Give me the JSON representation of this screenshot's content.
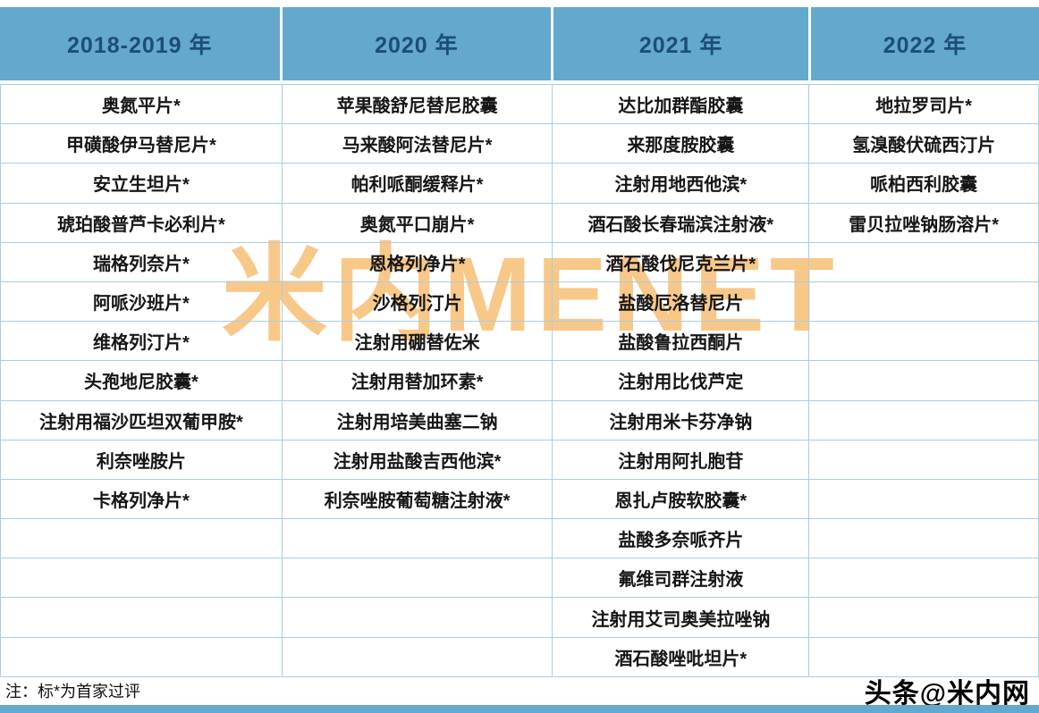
{
  "chart_data": {
    "type": "table",
    "title": "",
    "columns": [
      {
        "header": "2018-2019 年",
        "items": [
          "奥氮平片*",
          "甲磺酸伊马替尼片*",
          "安立生坦片*",
          "琥珀酸普芦卡必利片*",
          "瑞格列奈片*",
          "阿哌沙班片*",
          "维格列汀片*",
          "头孢地尼胶囊*",
          "注射用福沙匹坦双葡甲胺*",
          "利奈唑胺片",
          "卡格列净片*"
        ]
      },
      {
        "header": "2020 年",
        "items": [
          "苹果酸舒尼替尼胶囊",
          "马来酸阿法替尼片*",
          "帕利哌酮缓释片*",
          "奥氮平口崩片*",
          "恩格列净片*",
          "沙格列汀片",
          "注射用硼替佐米",
          "注射用替加环素*",
          "注射用培美曲塞二钠",
          "注射用盐酸吉西他滨*",
          "利奈唑胺葡萄糖注射液*"
        ]
      },
      {
        "header": "2021 年",
        "items": [
          "达比加群酯胶囊",
          "来那度胺胶囊",
          "注射用地西他滨*",
          "酒石酸长春瑞滨注射液*",
          "酒石酸伐尼克兰片*",
          "盐酸厄洛替尼片",
          "盐酸鲁拉西酮片",
          "注射用比伐芦定",
          "注射用米卡芬净钠",
          "注射用阿扎胞苷",
          "恩扎卢胺软胶囊*",
          "盐酸多奈哌齐片",
          "氟维司群注射液",
          "注射用艾司奥美拉唑钠",
          "酒石酸唑吡坦片*"
        ]
      },
      {
        "header": "2022 年",
        "items": [
          "地拉罗司片*",
          "氢溴酸伏硫西汀片",
          "哌柏西利胶囊",
          "雷贝拉唑钠肠溶片*"
        ]
      }
    ]
  },
  "watermark": {
    "text": "米内MENET"
  },
  "note": "注：标*为首家过评",
  "footer_brand": "头条@米内网",
  "colors": {
    "header_bg": "#64a8cd",
    "header_text": "#1c4d7a",
    "grid_line": "#aacde2",
    "watermark": "#f49c2a",
    "bottom_bar": "#64a8cd"
  }
}
